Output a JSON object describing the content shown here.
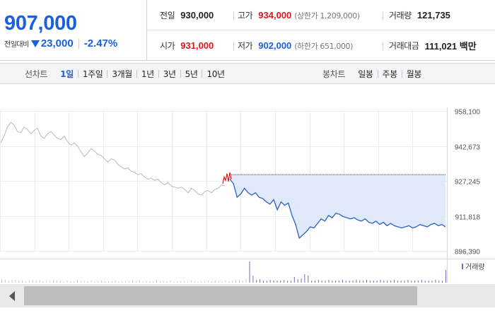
{
  "quote": {
    "price": "907,000",
    "change_label": "전일대비",
    "change_direction_icon": "down-triangle-icon",
    "change_amount": "23,000",
    "change_percent": "-2.47%",
    "prev_close_label": "전일",
    "prev_close": "930,000",
    "high_label": "고가",
    "high": "934,000",
    "upper_limit": "(상한가 1,209,000)",
    "volume_label": "거래량",
    "volume": "121,735",
    "open_label": "시가",
    "open": "931,000",
    "low_label": "저가",
    "low": "902,000",
    "lower_limit": "(하한가 651,000)",
    "trade_value_label": "거래대금",
    "trade_value": "111,021 백만"
  },
  "toolbar": {
    "line_chart_label": "선차트",
    "line_ranges": [
      "1일",
      "1주일",
      "3개월",
      "1년",
      "3년",
      "5년",
      "10년"
    ],
    "active_range": "1일",
    "candle_chart_label": "봉차트",
    "candle_ranges": [
      "일봉",
      "주봉",
      "월봉"
    ]
  },
  "chart_data": {
    "type": "line",
    "y_ticks": [
      "958,100",
      "942,673",
      "927,245",
      "911,818",
      "896,390"
    ],
    "ylim": [
      896390,
      958100
    ],
    "prev_close": 930000,
    "volume_legend": "거래량",
    "grid": true,
    "series": [
      {
        "style": "gray",
        "values": [
          944000,
          947000,
          951000,
          953000,
          952000,
          949000,
          948500,
          951000,
          950000,
          948000,
          949500,
          950500,
          947000,
          946000,
          948000,
          949000,
          947500,
          946000,
          945500,
          947000,
          944500,
          943000,
          944000,
          942500,
          940000,
          938000,
          939500,
          941500,
          940500,
          939000,
          938500,
          937000,
          935500,
          937000,
          936500,
          934500,
          933500,
          932500,
          933000,
          931500,
          931000,
          930000,
          930500,
          929000,
          928000,
          928500,
          927500,
          928000,
          926500,
          925500,
          926500,
          925000,
          924500,
          924000,
          924500,
          923500,
          922000,
          924000,
          923000,
          921500,
          921000,
          922500,
          923000,
          922000,
          923500,
          924000,
          925500,
          925000
        ]
      },
      {
        "style": "red",
        "values": [
          926000,
          929000,
          927500,
          930500,
          927000,
          931000,
          928000
        ]
      },
      {
        "style": "blue",
        "values": [
          928000,
          926000,
          920000,
          921500,
          924000,
          922000,
          921000,
          922000,
          920000,
          919500,
          918000,
          917000,
          919000,
          914500,
          918000,
          916500,
          917500,
          912000,
          908000,
          902000,
          903500,
          905000,
          907000,
          906500,
          908500,
          910500,
          909500,
          912000,
          911000,
          913000,
          912500,
          911500,
          911000,
          910500,
          911000,
          910000,
          909500,
          910500,
          909000,
          908500,
          909500,
          908000,
          909000,
          907500,
          908500,
          907500,
          907000,
          906500,
          907000,
          907500,
          906500,
          907000,
          908000,
          907500,
          907000,
          908000,
          908500,
          907500,
          908000,
          907000
        ]
      }
    ],
    "volume": [
      5,
      4,
      3,
      4,
      4,
      3,
      3,
      2,
      3,
      4,
      3,
      3,
      2,
      3,
      2,
      3,
      3,
      2,
      2,
      3,
      2,
      2,
      3,
      2,
      2,
      2,
      3,
      2,
      2,
      3,
      2,
      2,
      2,
      3,
      2,
      2,
      2,
      2,
      3,
      2,
      3,
      2,
      2,
      2,
      2,
      3,
      2,
      2,
      2,
      3,
      2,
      2,
      2,
      2,
      2,
      3,
      2,
      2,
      2,
      2,
      3,
      2,
      3,
      2,
      2,
      3,
      2,
      3,
      3,
      4,
      3,
      5,
      30,
      10,
      4,
      5,
      3,
      3,
      4,
      3,
      3,
      3,
      4,
      3,
      3,
      8,
      5,
      6,
      12,
      10,
      3,
      3,
      4,
      3,
      3,
      4,
      3,
      3,
      3,
      4,
      3,
      3,
      3,
      4,
      3,
      3,
      4,
      3,
      3,
      3,
      4,
      3,
      3,
      3,
      4,
      3,
      3,
      3,
      4,
      3,
      3,
      3,
      4,
      3,
      3,
      3,
      4,
      3,
      3,
      18
    ]
  }
}
